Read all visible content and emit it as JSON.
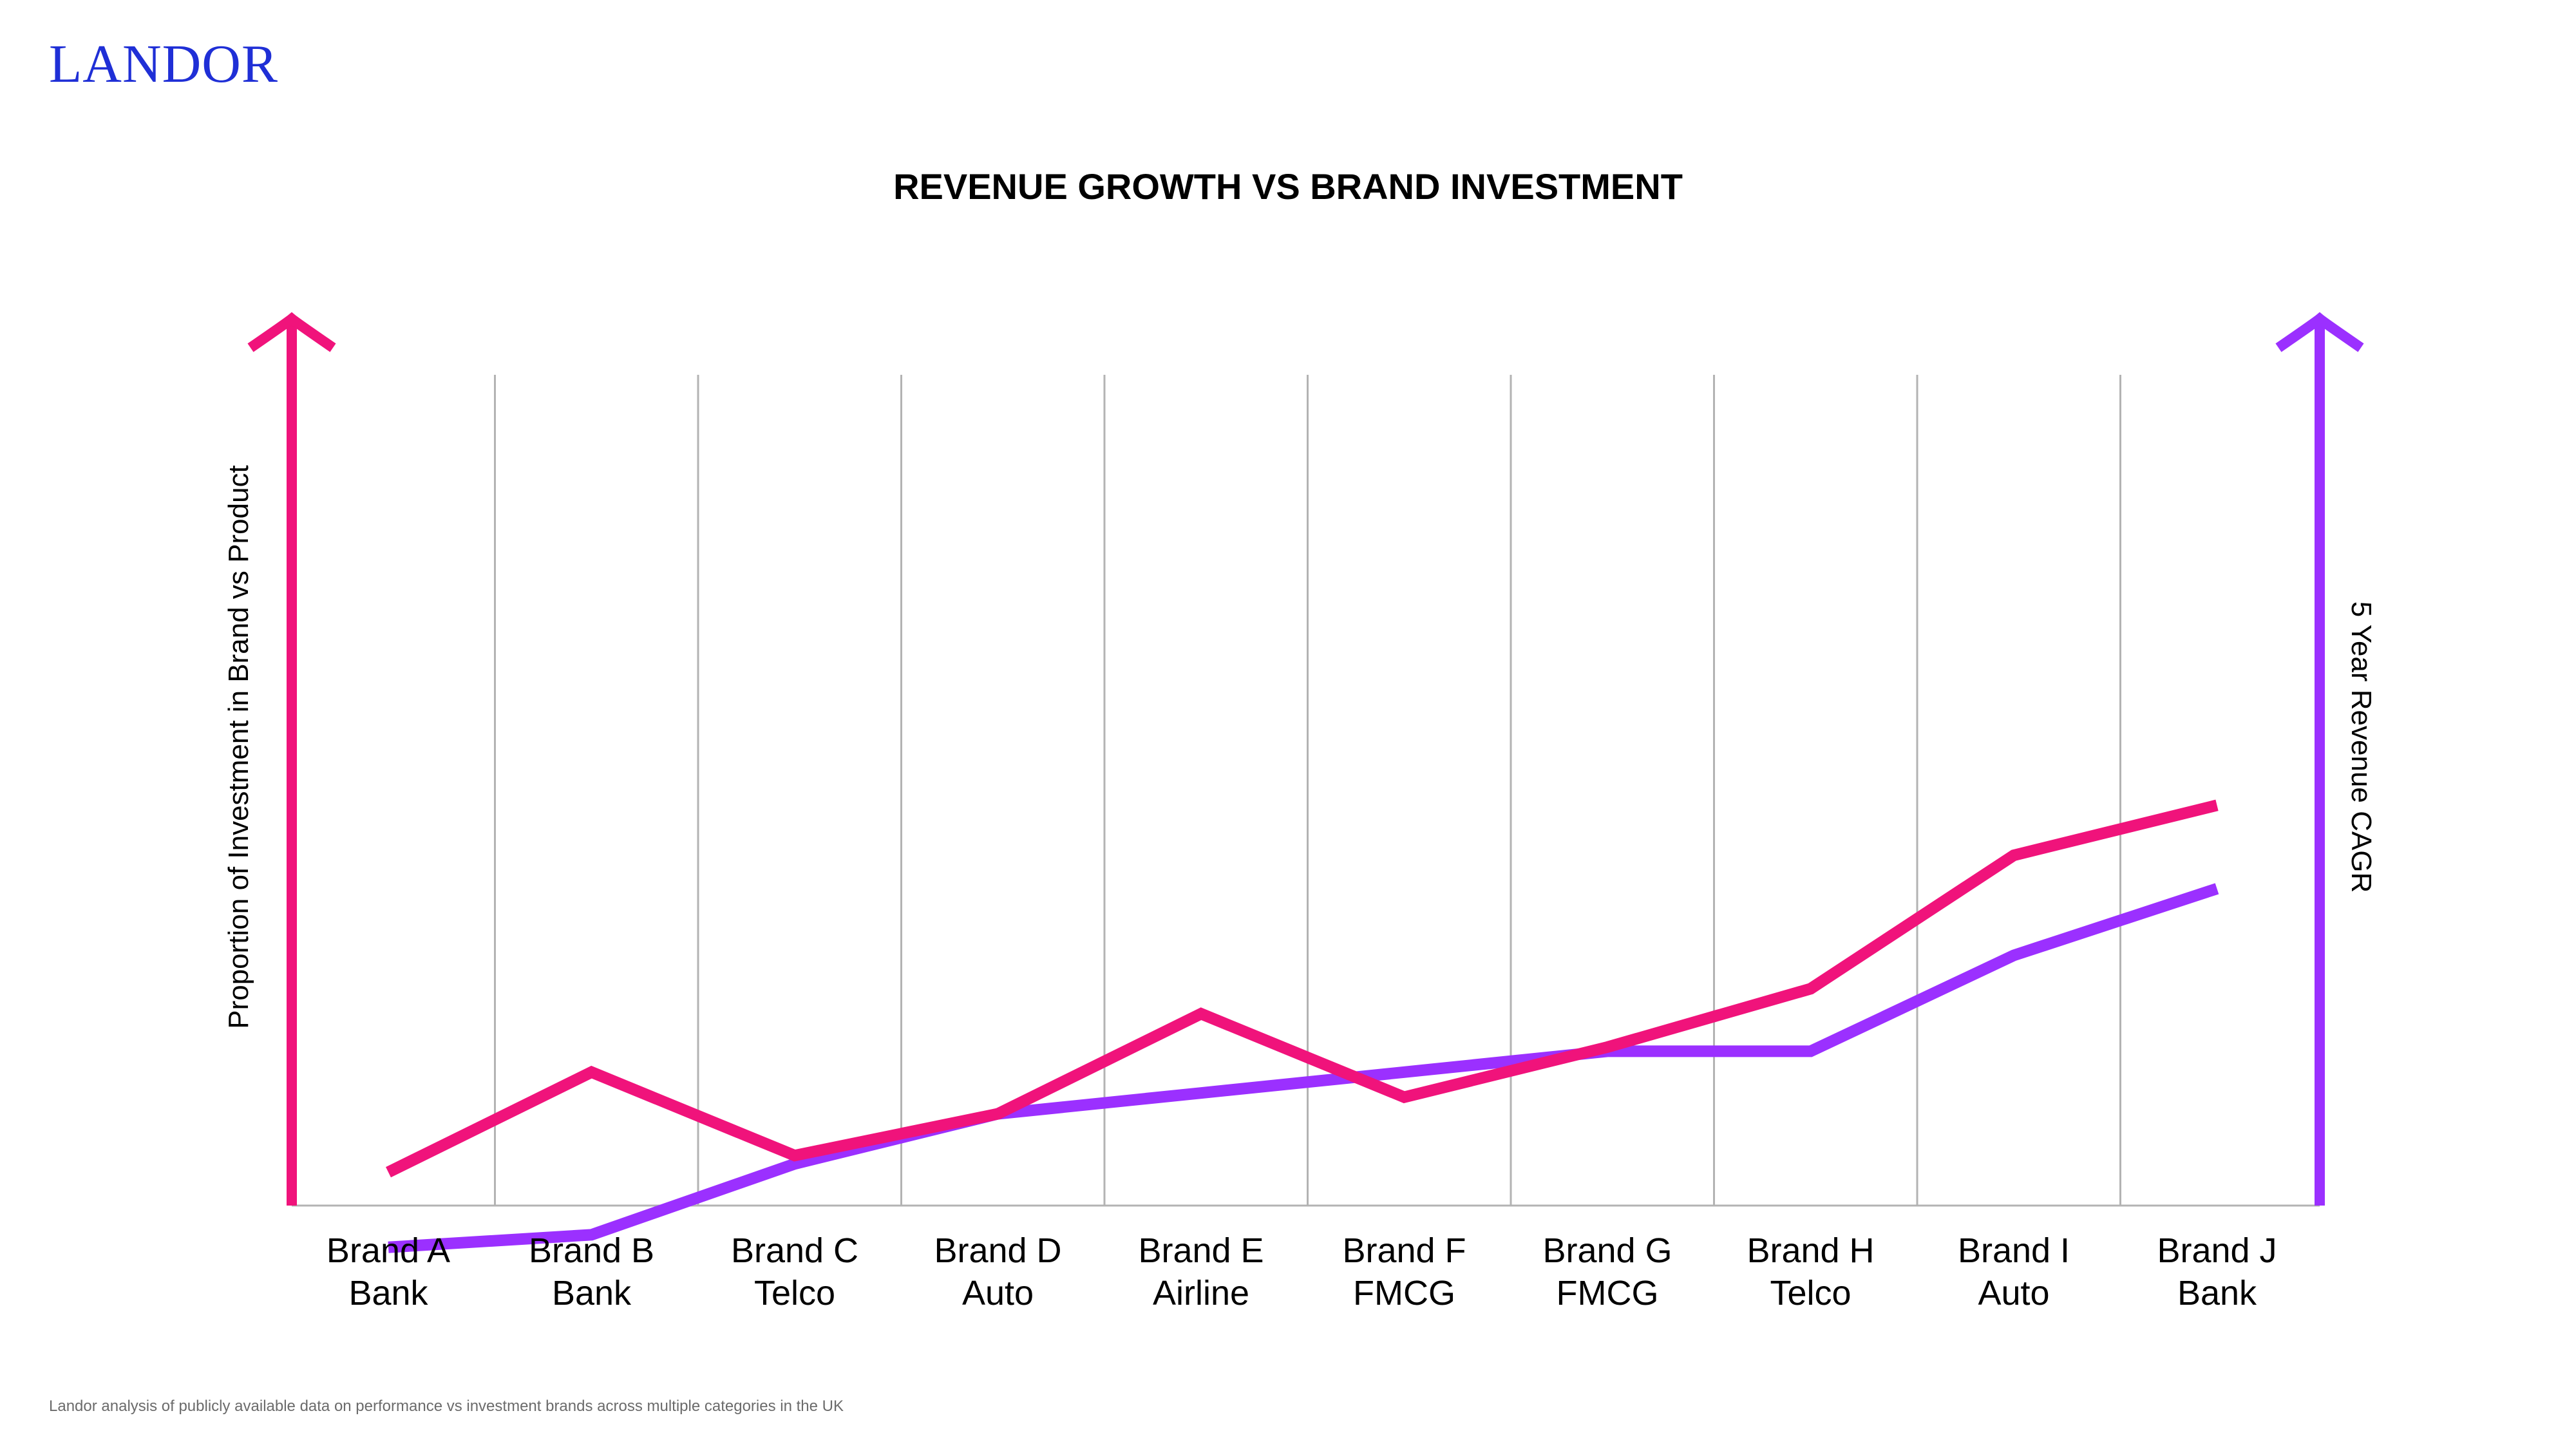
{
  "brand": {
    "logo_text": "LANDOR"
  },
  "colors": {
    "investment": "#f0137b",
    "cagr": "#9b30ff",
    "logo": "#1f2fd6",
    "grid": "#b3b3b3"
  },
  "chart_data": {
    "type": "line",
    "title": "REVENUE GROWTH VS BRAND INVESTMENT",
    "categories": [
      [
        "Brand A",
        "Bank"
      ],
      [
        "Brand B",
        "Bank"
      ],
      [
        "Brand C",
        "Telco"
      ],
      [
        "Brand D",
        "Auto"
      ],
      [
        "Brand E",
        "Airline"
      ],
      [
        "Brand F",
        "FMCG"
      ],
      [
        "Brand G",
        "FMCG"
      ],
      [
        "Brand H",
        "Telco"
      ],
      [
        "Brand I",
        "Auto"
      ],
      [
        "Brand J",
        "Bank"
      ]
    ],
    "y_left_label": "Proportion of Investment in Brand vs Product",
    "y_right_label": "5 Year Revenue CAGR",
    "ylim": [
      0,
      100
    ],
    "grid": "vertical",
    "series": [
      {
        "axis": "left",
        "color_key": "investment",
        "values": [
          4,
          16,
          6,
          11,
          23,
          13,
          19,
          26,
          42,
          48
        ]
      },
      {
        "axis": "right",
        "color_key": "cagr",
        "values": [
          -5,
          -3.5,
          5,
          11,
          13.5,
          16,
          18.5,
          18.5,
          30,
          38
        ]
      }
    ]
  },
  "footnote": "Landor analysis of publicly available data on performance vs investment brands across multiple categories in the UK"
}
